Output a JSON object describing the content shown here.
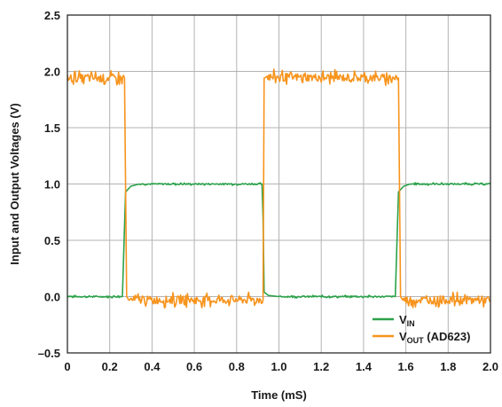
{
  "chart_data": {
    "type": "line",
    "xlabel": "Time (mS)",
    "ylabel": "Input and Output Voltages (V)",
    "xlim": [
      0,
      2.0
    ],
    "ylim": [
      -0.5,
      2.5
    ],
    "x_ticks": [
      "0",
      "0.2",
      "0.4",
      "0.6",
      "0.8",
      "1.0",
      "1.2",
      "1.4",
      "1.6",
      "1.8",
      "2.0"
    ],
    "y_ticks": [
      "–0.5",
      "0.0",
      "0.5",
      "1.0",
      "1.5",
      "2.0",
      "2.5"
    ],
    "grid": true,
    "legend_position": "bottom-right",
    "series": [
      {
        "name": "V",
        "name_sub": "IN",
        "color": "#2ca24a",
        "x": [
          -0.02,
          0.26,
          0.275,
          0.3,
          0.34,
          0.92,
          0.925,
          0.93,
          0.95,
          1.0,
          1.55,
          1.565,
          1.59,
          1.62,
          2.0
        ],
        "y": [
          0.0,
          0.0,
          0.93,
          0.98,
          1.0,
          1.0,
          0.7,
          0.04,
          0.01,
          0.0,
          0.0,
          0.93,
          0.98,
          1.0,
          1.0
        ]
      },
      {
        "name": "V",
        "name_sub": "OUT",
        "name_suffix": " (AD623)",
        "color": "#f7941d",
        "x": [
          -0.02,
          0.27,
          0.28,
          0.29,
          0.925,
          0.93,
          0.94,
          1.565,
          1.575,
          1.585,
          2.0
        ],
        "y": [
          1.94,
          1.94,
          0.0,
          -0.03,
          -0.03,
          1.94,
          1.95,
          1.94,
          0.0,
          -0.03,
          -0.03
        ]
      }
    ]
  }
}
